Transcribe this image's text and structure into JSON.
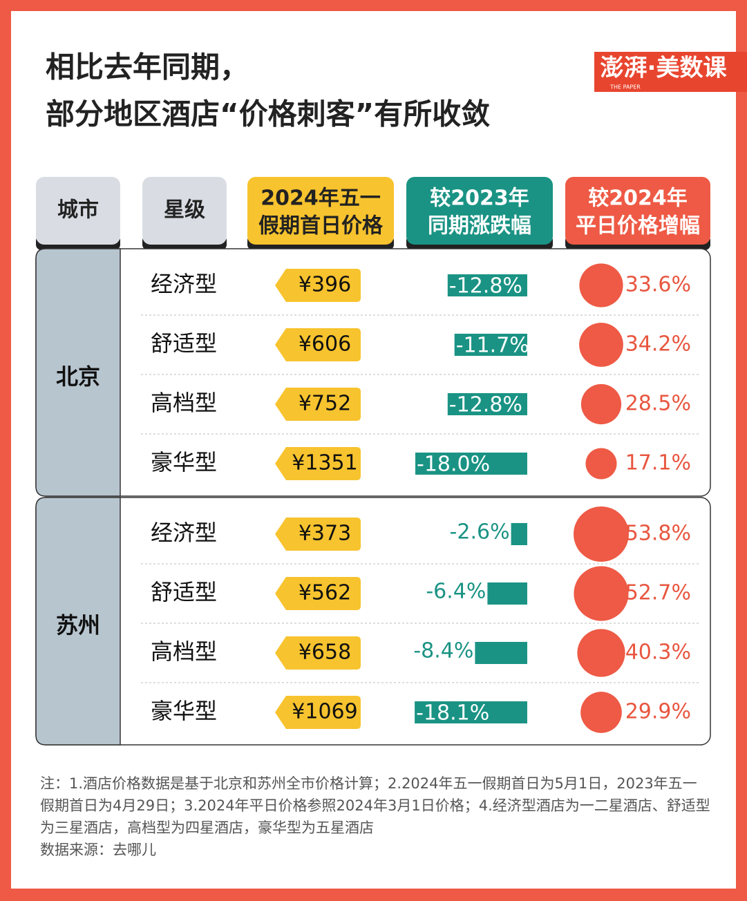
{
  "header": {
    "title": [
      "相比去年同期，",
      "部分地区酒店“价格刺客”有所收敛"
    ],
    "logo": "澎湃·美数课",
    "logo_sub": "THE PAPER"
  },
  "table": {
    "columns": [
      [
        "城市"
      ],
      [
        "星级"
      ],
      [
        "2024年五一",
        "假期首日价格"
      ],
      [
        "较2023年",
        "同期涨跌幅"
      ],
      [
        "较2024年",
        "平日价格增幅"
      ]
    ],
    "groups": [
      {
        "city": "北京",
        "rows": [
          {
            "star": "经济型",
            "price": "¥396",
            "change": {
              "value": -12.8,
              "label": "-12.8%"
            },
            "growth": {
              "value": 33.6,
              "label": "33.6%"
            }
          },
          {
            "star": "舒适型",
            "price": "¥606",
            "change": {
              "value": -11.7,
              "label": "-11.7%"
            },
            "growth": {
              "value": 34.2,
              "label": "34.2%"
            }
          },
          {
            "star": "高档型",
            "price": "¥752",
            "change": {
              "value": -12.8,
              "label": "-12.8%"
            },
            "growth": {
              "value": 28.5,
              "label": "28.5%"
            }
          },
          {
            "star": "豪华型",
            "price": "¥1351",
            "change": {
              "value": -18.0,
              "label": "-18.0%"
            },
            "growth": {
              "value": 17.1,
              "label": "17.1%"
            }
          }
        ]
      },
      {
        "city": "苏州",
        "rows": [
          {
            "star": "经济型",
            "price": "¥373",
            "change": {
              "value": -2.6,
              "label": "-2.6%"
            },
            "growth": {
              "value": 53.8,
              "label": "53.8%"
            }
          },
          {
            "star": "舒适型",
            "price": "¥562",
            "change": {
              "value": -6.4,
              "label": "-6.4%"
            },
            "growth": {
              "value": 52.7,
              "label": "52.7%"
            }
          },
          {
            "star": "高档型",
            "price": "¥658",
            "change": {
              "value": -8.4,
              "label": "-8.4%"
            },
            "growth": {
              "value": 40.3,
              "label": "40.3%"
            }
          },
          {
            "star": "豪华型",
            "price": "¥1069",
            "change": {
              "value": -18.1,
              "label": "-18.1%"
            },
            "growth": {
              "value": 29.9,
              "label": "29.9%"
            }
          }
        ]
      }
    ]
  },
  "footer": {
    "note": "注：1.酒店价格数据是基于北京和苏州全市价格计算；2.2024年五一假期首日为5月1日，2023年五一假期首日为4月29日；3.2024年平日价格参照2024年3月1日价格；4.经济型酒店为一二星酒店、舒适型为三星酒店，高档型为四星酒店，豪华型为五星酒店",
    "source": "数据来源：去哪儿"
  }
}
